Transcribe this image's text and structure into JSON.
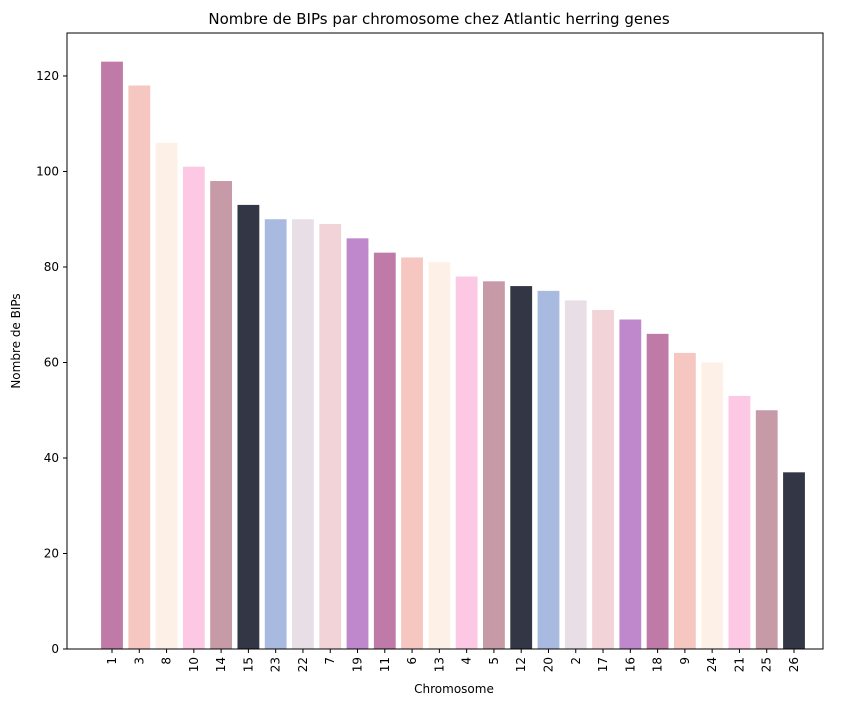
{
  "chart_data": {
    "type": "bar",
    "title": "Nombre de BIPs par chromosome chez Atlantic herring genes",
    "xlabel": "Chromosome",
    "ylabel": "Nombre de BIPs",
    "ylim": [
      0,
      129
    ],
    "yticks": [
      0,
      20,
      40,
      60,
      80,
      100,
      120
    ],
    "grid": false,
    "categories": [
      "1",
      "3",
      "8",
      "10",
      "14",
      "15",
      "23",
      "22",
      "7",
      "19",
      "11",
      "6",
      "13",
      "4",
      "5",
      "12",
      "20",
      "2",
      "17",
      "16",
      "18",
      "9",
      "24",
      "21",
      "25",
      "26"
    ],
    "values": [
      123,
      118,
      106,
      101,
      98,
      93,
      90,
      90,
      89,
      86,
      83,
      82,
      81,
      78,
      77,
      76,
      75,
      73,
      71,
      69,
      66,
      62,
      60,
      53,
      50,
      37
    ],
    "colors": [
      "#c07aa8",
      "#f6c7c0",
      "#fdf0e6",
      "#fcc8e4",
      "#c69aa6",
      "#333644",
      "#a8badf",
      "#e8dfe6",
      "#f2d4d8",
      "#c088cc",
      "#c07aa8",
      "#f6c7c0",
      "#fdf0e6",
      "#fcc8e4",
      "#c69aa6",
      "#333644",
      "#a8badf",
      "#e8dfe6",
      "#f2d4d8",
      "#c088cc",
      "#c07aa8",
      "#f6c7c0",
      "#fdf0e6",
      "#fcc8e4",
      "#c69aa6",
      "#333644"
    ]
  }
}
